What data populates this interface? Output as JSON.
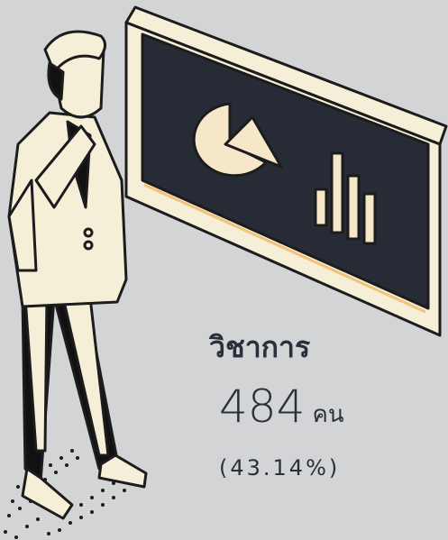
{
  "category": "วิชาการ",
  "count": 484,
  "unit": "คน",
  "percent": "(43.14%)"
}
